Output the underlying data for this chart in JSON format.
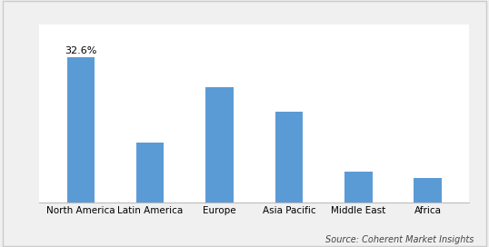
{
  "categories": [
    "North America",
    "Latin America",
    "Europe",
    "Asia Pacific",
    "Middle East",
    "Africa"
  ],
  "values": [
    32.6,
    13.5,
    26.0,
    20.5,
    7.0,
    5.5
  ],
  "bar_color": "#5B9BD5",
  "label_text": "32.6%",
  "label_value_index": 0,
  "ylim": [
    0,
    40
  ],
  "source_text": "Source: Coherent Market Insights",
  "background_color": "#ffffff",
  "outer_background": "#f0f0f0",
  "border_color": "#cccccc",
  "label_fontsize": 8,
  "tick_fontsize": 7.5,
  "source_fontsize": 7,
  "bar_width": 0.4
}
